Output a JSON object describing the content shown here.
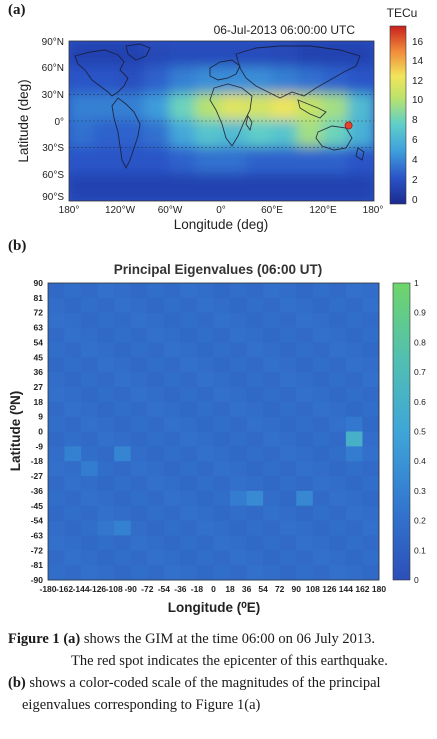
{
  "panel_a": {
    "label": "(a)",
    "timestamp": "06-Jul-2013 06:00:00 UTC",
    "colorbar_title": "TECu",
    "colorbar_ticks": [
      "16",
      "14",
      "12",
      "10",
      "8",
      "6",
      "4",
      "2",
      "0"
    ],
    "xlabel": "Longitude (deg)",
    "ylabel": "Latitude (deg)",
    "xticks": [
      "180°",
      "120°W",
      "60°W",
      "0°",
      "60°E",
      "120°E",
      "180°"
    ],
    "yticks": [
      "90°N",
      "60°N",
      "30°N",
      "0°",
      "30°S",
      "60°S",
      "90°S"
    ]
  },
  "panel_b": {
    "label": "(b)",
    "title": "Principal Eigenvalues (06:00 UT)",
    "ylabel": "Latitude (⁰N)",
    "xlabel": "Longitude (⁰E)",
    "xticks": [
      "-180",
      "-162",
      "-144",
      "-126",
      "-108",
      "-90",
      "-72",
      "-54",
      "-36",
      "-18",
      "0",
      "18",
      "36",
      "54",
      "72",
      "90",
      "108",
      "126",
      "144",
      "162",
      "180"
    ],
    "yticks": [
      "90",
      "81",
      "72",
      "63",
      "54",
      "45",
      "36",
      "27",
      "18",
      "9",
      "0",
      "-9",
      "-18",
      "-27",
      "-36",
      "-45",
      "-54",
      "-63",
      "-72",
      "-81",
      "-90"
    ],
    "colorbar_ticks": [
      "1",
      "0.9",
      "0.8",
      "0.7",
      "0.6",
      "0.5",
      "0.4",
      "0.3",
      "0.2",
      "0.1",
      "0"
    ]
  },
  "caption": {
    "fig_label": "Figure 1",
    "a_tag": "(a)",
    "line1": " shows the GIM at the time 06:00 on 06 July 2013.",
    "line2": "The red spot indicates the epicenter of this earthquake.",
    "b_tag": "(b)",
    "line3": " shows a color-coded scale of the magnitudes of the principal",
    "line4": "eigenvalues corresponding to Figure 1(a)"
  },
  "colors": {
    "low": "#2b55c8",
    "mid": "#3fa0dc",
    "high": "#f2e45a",
    "peak": "#66c96b",
    "epicenter": "#e8412b"
  },
  "chart_data": [
    {
      "type": "heatmap",
      "title": "",
      "xlabel": "Longitude (deg)",
      "ylabel": "Latitude (deg)",
      "colorbar_label": "TECu",
      "xlim": [
        -180,
        180
      ],
      "ylim": [
        -90,
        90
      ],
      "zlim": [
        0,
        17
      ],
      "lon_centers": [
        -165,
        -135,
        -105,
        -75,
        -45,
        -15,
        15,
        45,
        75,
        105,
        135,
        165
      ],
      "lat_centers": [
        75,
        45,
        15,
        -15,
        -45,
        -75
      ],
      "values": [
        [
          1.5,
          1.5,
          1.5,
          1.8,
          2.0,
          2.0,
          2.0,
          2.0,
          1.8,
          1.5,
          1.5,
          1.5
        ],
        [
          2.5,
          2.5,
          2.2,
          3.0,
          4.0,
          4.5,
          4.5,
          4.5,
          4.0,
          3.5,
          3.0,
          2.5
        ],
        [
          4.0,
          4.0,
          4.0,
          5.0,
          8.0,
          10.0,
          11.5,
          11.0,
          12.0,
          10.5,
          9.5,
          6.5
        ],
        [
          3.5,
          3.0,
          3.0,
          3.5,
          5.5,
          7.0,
          6.5,
          7.5,
          7.0,
          9.5,
          8.0,
          6.0
        ],
        [
          2.5,
          2.5,
          2.5,
          2.5,
          3.0,
          3.5,
          3.5,
          3.0,
          3.0,
          3.0,
          3.0,
          2.5
        ],
        [
          1.5,
          1.5,
          1.5,
          1.5,
          1.5,
          1.5,
          1.5,
          1.5,
          1.5,
          1.5,
          1.5,
          1.5
        ]
      ],
      "epicenter": {
        "lon": 150,
        "lat": -5
      }
    },
    {
      "type": "heatmap",
      "title": "Principal Eigenvalues (06:00 UT)",
      "xlabel": "Longitude (⁰E)",
      "ylabel": "Latitude (⁰N)",
      "x_edges": [
        -180,
        180
      ],
      "y_edges": [
        -90,
        90
      ],
      "grid_size": [
        20,
        20
      ],
      "zlim": [
        0,
        1
      ],
      "baseline_value": 0.18,
      "highlights": [
        {
          "lon": 144,
          "lat": 0,
          "value": 0.6
        },
        {
          "lon": 36,
          "lat": -36,
          "value": 0.35
        },
        {
          "lon": 90,
          "lat": -36,
          "value": 0.33
        },
        {
          "lon": -108,
          "lat": -9,
          "value": 0.32
        },
        {
          "lon": -162,
          "lat": -9,
          "value": 0.3
        },
        {
          "lon": -108,
          "lat": -54,
          "value": 0.3
        },
        {
          "lon": 18,
          "lat": -36,
          "value": 0.27
        },
        {
          "lon": -144,
          "lat": -18,
          "value": 0.27
        },
        {
          "lon": 144,
          "lat": -9,
          "value": 0.27
        },
        {
          "lon": -126,
          "lat": -54,
          "value": 0.24
        },
        {
          "lon": 144,
          "lat": 9,
          "value": 0.25
        }
      ]
    }
  ]
}
